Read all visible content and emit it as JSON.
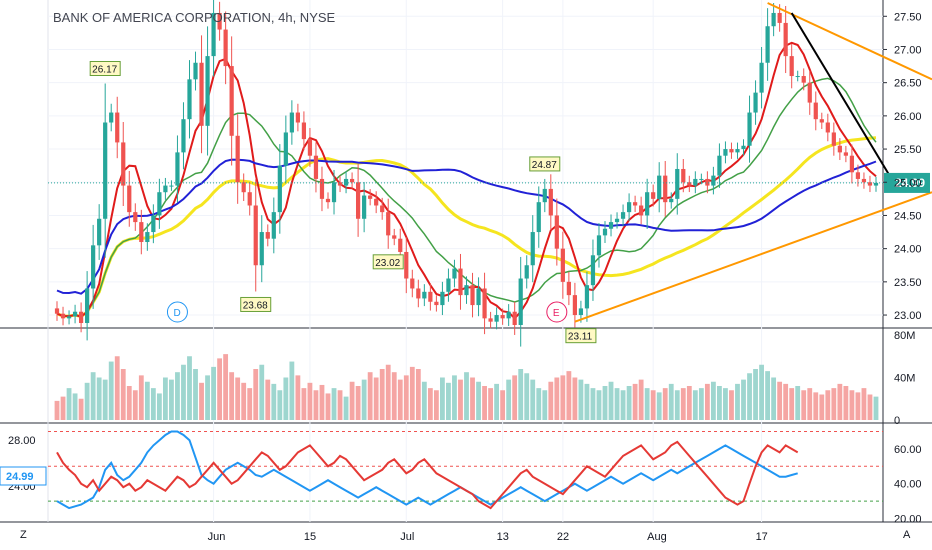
{
  "title": "BANK OF AMERICA CORPORATION, 4h, NYSE",
  "corner_left": "Z",
  "corner_right": "A",
  "colors": {
    "up": "#26a69a",
    "down": "#ef5350",
    "ma_blue": "#2121d6",
    "ma_red": "#e01b1b",
    "ma_green": "#43a047",
    "ma_yellow": "#f5e51f",
    "trend_orange": "#ff9800",
    "trend_black": "#000000",
    "last_price_bg": "#26a69a",
    "rsi_blue": "#2196f3",
    "rsi_red": "#e53935"
  },
  "chart_data": {
    "type": "candlestick",
    "symbol": "BAC",
    "interval": "4h",
    "exchange": "NYSE",
    "price_axis_ticks": [
      "27.50",
      "27.00",
      "26.50",
      "26.00",
      "25.50",
      "25.00",
      "24.50",
      "24.00",
      "23.50",
      "23.00"
    ],
    "price_range": [
      22.85,
      27.7
    ],
    "last_price": "24.99",
    "time_axis_labels": [
      "Jun",
      "15",
      "Jul",
      "13",
      "22",
      "Aug",
      "17"
    ],
    "time_axis_positions": [
      26,
      42,
      58,
      74,
      84,
      99,
      117
    ],
    "closes": [
      23.02,
      22.95,
      22.98,
      23.05,
      22.88,
      23.4,
      24.05,
      24.45,
      25.9,
      26.05,
      25.6,
      24.95,
      24.55,
      24.4,
      24.1,
      24.25,
      24.5,
      24.85,
      24.95,
      24.95,
      25.45,
      25.95,
      26.55,
      26.8,
      25.85,
      26.9,
      27.55,
      27.3,
      26.75,
      25.7,
      25.0,
      24.85,
      24.65,
      23.75,
      24.25,
      24.15,
      24.55,
      25.25,
      25.75,
      26.05,
      25.9,
      25.65,
      25.4,
      25.05,
      24.75,
      24.7,
      25.0,
      24.95,
      25.05,
      25.0,
      24.45,
      24.8,
      24.75,
      24.65,
      24.55,
      24.2,
      24.15,
      23.95,
      23.55,
      23.4,
      23.25,
      23.35,
      23.2,
      23.15,
      23.35,
      23.55,
      23.7,
      23.3,
      23.45,
      23.15,
      23.4,
      22.95,
      22.9,
      23.0,
      22.95,
      23.05,
      22.85,
      23.55,
      23.75,
      24.25,
      24.7,
      24.9,
      24.5,
      24.0,
      23.5,
      23.3,
      23.0,
      23.1,
      23.45,
      23.9,
      24.2,
      24.3,
      24.4,
      24.45,
      24.55,
      24.7,
      24.65,
      24.5,
      24.85,
      24.75,
      25.1,
      24.7,
      24.75,
      25.2,
      25.0,
      24.95,
      25.05,
      25.05,
      24.95,
      25.1,
      25.4,
      25.5,
      25.45,
      25.5,
      25.55,
      26.05,
      26.35,
      26.8,
      27.35,
      27.55,
      27.4,
      26.9,
      26.6,
      26.6,
      26.5,
      26.2,
      25.95,
      25.9,
      25.75,
      25.55,
      25.45,
      25.4,
      25.15,
      25.05,
      25.0,
      24.95,
      24.99
    ],
    "annotations": [
      {
        "text": "26.17",
        "bar": 8
      },
      {
        "text": "23.68",
        "bar": 33
      },
      {
        "text": "23.02",
        "bar": 55
      },
      {
        "text": "24.87",
        "bar": 81
      },
      {
        "text": "23.11",
        "bar": 87
      }
    ],
    "event_markers": [
      {
        "text": "D",
        "bar": 20
      },
      {
        "text": "E",
        "bar": 83
      }
    ],
    "volume": {
      "axis_ticks": [
        "80M",
        "40M",
        "0"
      ],
      "range": [
        0,
        80
      ],
      "values_m": [
        18,
        22,
        30,
        25,
        20,
        35,
        45,
        40,
        38,
        55,
        60,
        48,
        32,
        28,
        42,
        36,
        30,
        25,
        40,
        38,
        45,
        52,
        60,
        48,
        35,
        42,
        50,
        58,
        62,
        45,
        40,
        35,
        30,
        48,
        52,
        38,
        34,
        28,
        40,
        55,
        42,
        30,
        35,
        28,
        33,
        25,
        30,
        28,
        22,
        36,
        32,
        38,
        45,
        40,
        48,
        52,
        45,
        38,
        42,
        50,
        48,
        36,
        30,
        28,
        40,
        35,
        42,
        38,
        45,
        40,
        36,
        32,
        30,
        34,
        28,
        38,
        42,
        48,
        44,
        38,
        30,
        28,
        36,
        40,
        42,
        46,
        40,
        38,
        34,
        30,
        28,
        32,
        36,
        30,
        28,
        32,
        34,
        38,
        30,
        28,
        26,
        30,
        34,
        28,
        30,
        32,
        28,
        30,
        34,
        36,
        32,
        30,
        28,
        34,
        38,
        44,
        48,
        52,
        46,
        40,
        36,
        34,
        30,
        32,
        28,
        30,
        26,
        24,
        28,
        30,
        34,
        32,
        28,
        26,
        30,
        24,
        22
      ]
    },
    "rsi": {
      "axis_ticks": [
        "60.00",
        "40.00",
        "20.00"
      ],
      "range": [
        18,
        72
      ],
      "overbought": 70,
      "oversold": 30,
      "mid": 50,
      "left_ticks": [
        "28.00",
        "24.00"
      ],
      "left_label": "24.99",
      "series_blue": [
        30,
        28,
        26,
        27,
        28,
        30,
        32,
        38,
        48,
        52,
        45,
        42,
        44,
        48,
        52,
        58,
        62,
        65,
        68,
        70,
        70,
        68,
        65,
        55,
        45,
        42,
        40,
        44,
        48,
        50,
        52,
        50,
        48,
        45,
        44,
        46,
        48,
        46,
        44,
        42,
        40,
        38,
        36,
        38,
        40,
        42,
        40,
        38,
        36,
        34,
        32,
        34,
        36,
        38,
        36,
        34,
        32,
        30,
        28,
        30,
        32,
        30,
        28,
        30,
        32,
        34,
        36,
        38,
        36,
        34,
        32,
        30,
        28,
        30,
        32,
        34,
        36,
        38,
        36,
        34,
        32,
        30,
        32,
        34,
        36,
        38,
        40,
        38,
        36,
        38,
        40,
        42,
        44,
        42,
        40,
        42,
        44,
        46,
        44,
        42,
        44,
        46,
        48,
        46,
        48,
        50,
        52,
        54,
        56,
        58,
        60,
        62,
        60,
        58,
        56,
        54,
        52,
        50,
        48,
        46,
        44,
        44,
        45,
        46
      ],
      "series_red": [
        58,
        52,
        48,
        45,
        40,
        38,
        42,
        36,
        40,
        44,
        42,
        38,
        40,
        36,
        38,
        42,
        40,
        38,
        36,
        40,
        44,
        42,
        38,
        40,
        44,
        48,
        52,
        48,
        44,
        40,
        42,
        46,
        50,
        54,
        58,
        56,
        52,
        48,
        50,
        54,
        58,
        60,
        62,
        58,
        54,
        50,
        52,
        56,
        54,
        50,
        46,
        42,
        44,
        46,
        48,
        52,
        54,
        50,
        46,
        48,
        52,
        54,
        50,
        46,
        44,
        42,
        40,
        38,
        36,
        34,
        30,
        28,
        26,
        30,
        34,
        38,
        42,
        46,
        48,
        44,
        42,
        40,
        38,
        36,
        34,
        38,
        42,
        46,
        50,
        48,
        46,
        44,
        48,
        52,
        56,
        58,
        60,
        62,
        58,
        54,
        56,
        58,
        62,
        64,
        60,
        56,
        52,
        48,
        44,
        40,
        36,
        32,
        30,
        28,
        30,
        40,
        50,
        58,
        62,
        60,
        58,
        62,
        60,
        58
      ]
    }
  }
}
